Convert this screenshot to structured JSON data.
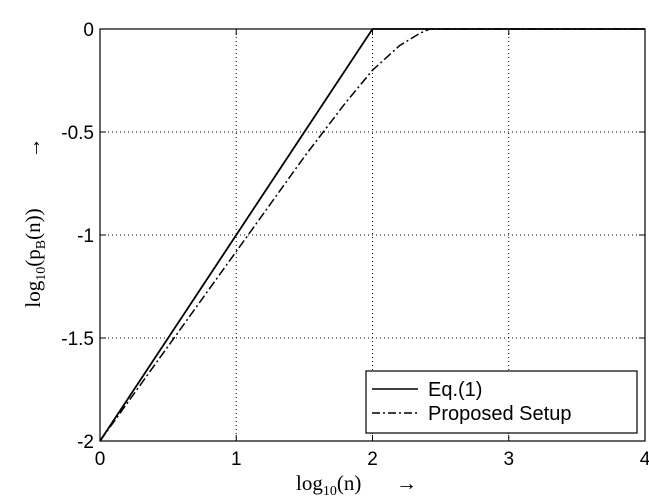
{
  "chart_data": {
    "type": "line",
    "title": "",
    "xlabel": "log10(n)",
    "xlabel_base": "log",
    "xlabel_sub": "10",
    "xlabel_tail": "(n)",
    "ylabel": "log10(pB(n))",
    "ylabel_base": "log",
    "ylabel_sub": "10",
    "ylabel_mid": "(p",
    "ylabel_sub2": "B",
    "ylabel_tail": "(n))",
    "arrow": "→",
    "xlim": [
      0,
      4
    ],
    "ylim": [
      -2,
      0
    ],
    "grid": true,
    "grid_style": "dotted",
    "legend_position": "bottom-right",
    "x_ticks": [
      0,
      1,
      2,
      3,
      4
    ],
    "x_tick_labels": [
      "0",
      "1",
      "2",
      "3",
      "4"
    ],
    "y_ticks": [
      0,
      -0.5,
      -1,
      -1.5,
      -2
    ],
    "y_tick_labels": [
      "0",
      "-0.5",
      "-1",
      "-1.5",
      "-2"
    ],
    "series": [
      {
        "name": "Eq.(1)",
        "style": "solid",
        "color": "#000000",
        "x": [
          0,
          2,
          4
        ],
        "y": [
          -2,
          0,
          0
        ]
      },
      {
        "name": "Proposed Setup",
        "style": "dashdot",
        "color": "#000000",
        "x": [
          0,
          0.5,
          1.0,
          1.5,
          1.8,
          2.0,
          2.2,
          2.35,
          2.42,
          4.0
        ],
        "y": [
          -2,
          -1.54,
          -1.08,
          -0.62,
          -0.36,
          -0.2,
          -0.08,
          -0.02,
          0,
          0
        ]
      }
    ]
  }
}
